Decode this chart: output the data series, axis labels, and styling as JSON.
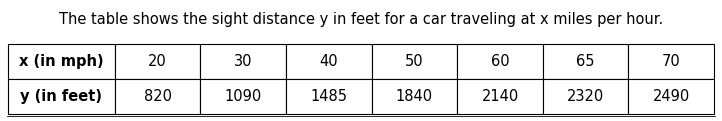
{
  "title": "The table shows the sight distance y in feet for a car traveling at x miles per hour.",
  "row1_label": "x (in mph)",
  "row2_label": "y (in feet)",
  "x_values": [
    "20",
    "30",
    "40",
    "50",
    "60",
    "65",
    "70"
  ],
  "y_values": [
    "820",
    "1090",
    "1485",
    "1840",
    "2140",
    "2320",
    "2490"
  ],
  "title_fontsize": 10.5,
  "table_fontsize": 10.5,
  "background_color": "#ffffff",
  "border_color": "#000000",
  "text_color": "#000000",
  "fig_width": 7.22,
  "fig_height": 1.21,
  "dpi": 100
}
